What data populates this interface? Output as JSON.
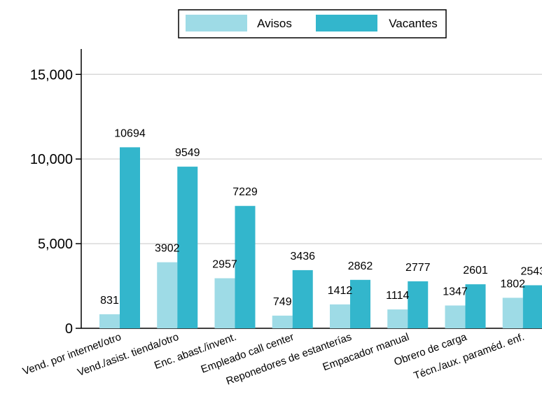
{
  "chart_data": {
    "type": "bar",
    "categories": [
      "Vend. por internet/otro",
      "Vend./asist. tienda/otro",
      "Enc. abast./invent.",
      "Empleado call center",
      "Reponedores de estanterías",
      "Empacador manual",
      "Obrero de carga",
      "Técn./aux. paraméd. enf."
    ],
    "series": [
      {
        "name": "Avisos",
        "values": [
          831,
          3902,
          2957,
          749,
          1412,
          1114,
          1347,
          1802
        ],
        "color": "#9edbe6"
      },
      {
        "name": "Vacantes",
        "values": [
          10694,
          9549,
          7229,
          3436,
          2862,
          2777,
          2601,
          2543
        ],
        "color": "#33b6cc"
      }
    ],
    "yticks": [
      0,
      5000,
      10000,
      15000
    ],
    "ytick_labels": [
      "0",
      "5,000",
      "10,000",
      "15,000"
    ],
    "ylim": [
      0,
      16500
    ],
    "grid": true,
    "legend": "top-center",
    "title": "",
    "xlabel": "",
    "ylabel": ""
  }
}
